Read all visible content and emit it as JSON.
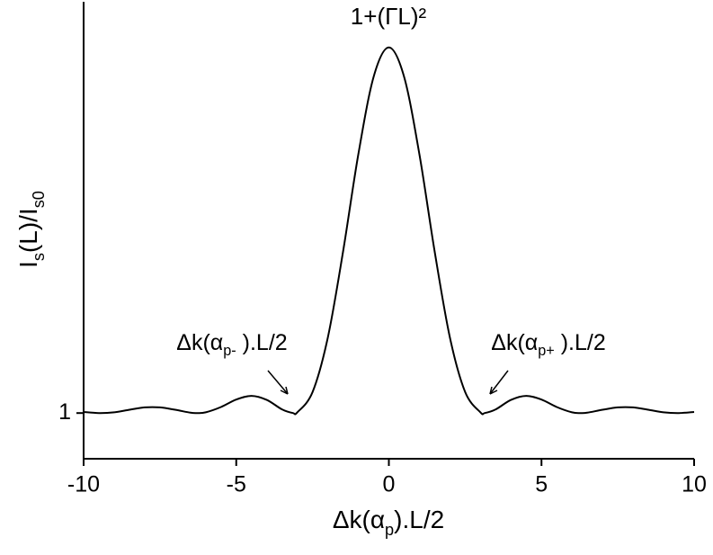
{
  "chart_data": {
    "type": "line",
    "title": "1+(ΓL)²",
    "xlabel_parts": [
      {
        "text": "Δk(α"
      },
      {
        "text": "p",
        "sub": true
      },
      {
        "text": ").L/2"
      }
    ],
    "ylabel_parts": [
      {
        "text": "I"
      },
      {
        "text": "s",
        "sub": true
      },
      {
        "text": "(L)/I"
      },
      {
        "text": "s0",
        "sub": true
      }
    ],
    "annotations": [
      {
        "parts": [
          {
            "text": "Δk(α"
          },
          {
            "text": "p-",
            "sub": true
          },
          {
            "text": " ).L/2"
          }
        ]
      },
      {
        "parts": [
          {
            "text": "Δk(α"
          },
          {
            "text": "p+",
            "sub": true
          },
          {
            "text": " ).L/2"
          }
        ]
      }
    ],
    "x": [
      -10,
      -9.5,
      -9,
      -8.5,
      -8,
      -7.5,
      -7,
      -6.5,
      -6.28,
      -6,
      -5.5,
      -5,
      -4.5,
      -4,
      -3.5,
      -3.14,
      -3,
      -2.5,
      -2,
      -1.5,
      -1,
      -0.5,
      0,
      0.5,
      1,
      1.5,
      2,
      2.5,
      3,
      3.14,
      3.5,
      4,
      4.5,
      5,
      5.5,
      6,
      6.28,
      6.5,
      7,
      7.5,
      8,
      8.5,
      9,
      9.5,
      10
    ],
    "series": [
      {
        "color": "#000000",
        "values": [
          1.06,
          1,
          1.04,
          1.18,
          1.31,
          1.31,
          1.18,
          1.02,
          1,
          1.04,
          1.33,
          1.74,
          1.94,
          1.72,
          1.2,
          1,
          1.04,
          2.15,
          5.13,
          9.84,
          15.16,
          19.39,
          21,
          19.39,
          15.16,
          9.84,
          5.13,
          2.15,
          1.04,
          1,
          1.2,
          1.72,
          1.94,
          1.74,
          1.33,
          1.04,
          1,
          1.02,
          1.18,
          1.31,
          1.31,
          1.18,
          1.04,
          1,
          1.06
        ]
      }
    ],
    "xlim": [
      -10,
      10
    ],
    "xticks": [
      -10,
      -5,
      0,
      5,
      10
    ],
    "ylim": [
      -1.5,
      23.5
    ],
    "yticks": [
      1
    ]
  }
}
